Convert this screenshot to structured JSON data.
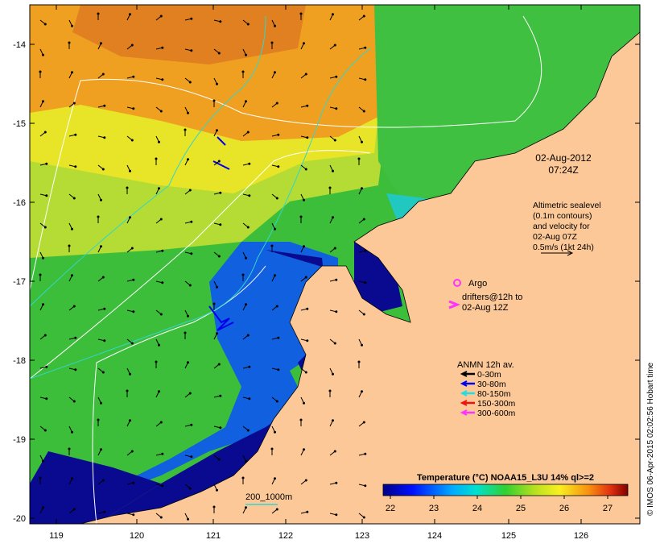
{
  "colors": {
    "land": "#fcc898",
    "ocean_warm": "#e48a1c",
    "ocean_mid": "#3cbe3a",
    "ocean_cold": "#04047c",
    "contour_white": "#ffffff",
    "contour_cyan": "#33d6cc"
  },
  "axes": {
    "lon_ticks": [
      "119",
      "120",
      "121",
      "122",
      "123",
      "124",
      "125",
      "126"
    ],
    "lat_ticks": [
      "-14",
      "-15",
      "-16",
      "-17",
      "-18",
      "-19",
      "-20"
    ]
  },
  "annotations": {
    "date_line1": "02-Aug-2012",
    "date_line2": "07:24Z",
    "altimetry_lines": [
      "Altimetric sealevel",
      "(0.1m contours)",
      "and velocity for",
      "02-Aug 07Z",
      "0.5m/s (1kt 24h)"
    ],
    "argo_label": "Argo",
    "drifters_line1": "drifters@12h to",
    "drifters_line2": "02-Aug 12Z",
    "anmn_title": "ANMN 12h av.",
    "anmn_items": [
      {
        "label": "0-30m",
        "color": "#000000"
      },
      {
        "label": "30-80m",
        "color": "#0000ee"
      },
      {
        "label": "80-150m",
        "color": "#22dddd"
      },
      {
        "label": "150-300m",
        "color": "#ee1111"
      },
      {
        "label": "300-600m",
        "color": "#ff33ff"
      }
    ],
    "depth_label": "200_1000m",
    "credit": "© IMOS 06-Apr-2015 02:02:56 Hobart time"
  },
  "colorbar": {
    "title": "Temperature (°C) NOAA15_L3U 14% ql>=2",
    "ticks": [
      "22",
      "23",
      "24",
      "25",
      "26",
      "27"
    ]
  }
}
